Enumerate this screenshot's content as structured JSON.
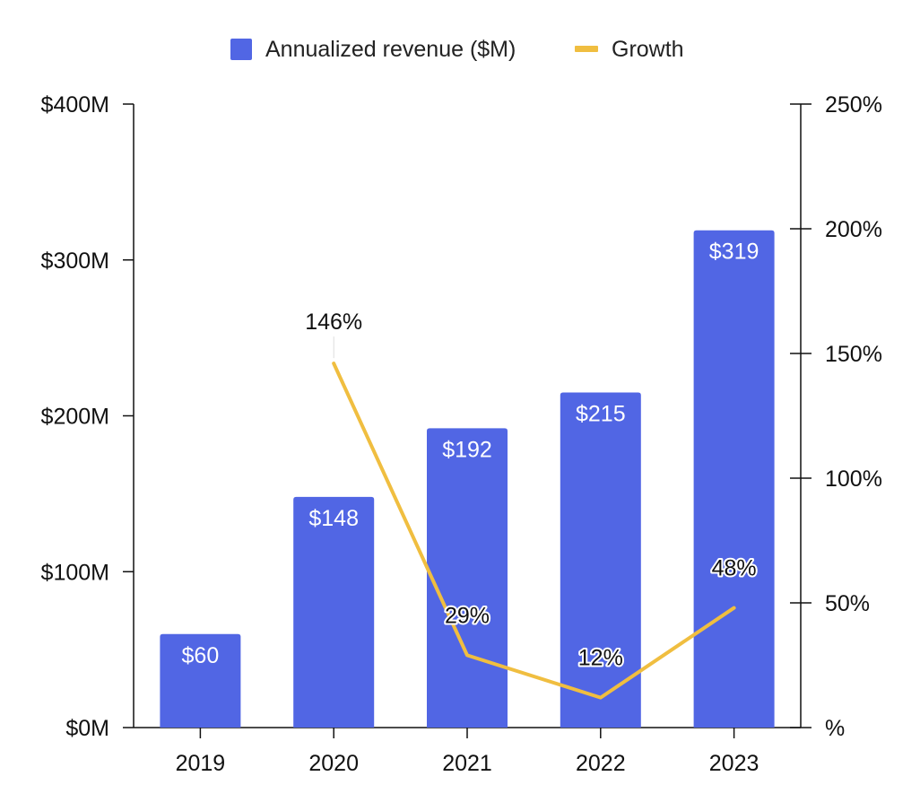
{
  "chart_data": {
    "type": "bar",
    "title": "",
    "xlabel": "",
    "ylabel": "",
    "categories": [
      "2019",
      "2020",
      "2021",
      "2022",
      "2023"
    ],
    "series": [
      {
        "name": "Annualized revenue ($M)",
        "kind": "bar",
        "axis": "left",
        "values": [
          60,
          148,
          192,
          215,
          319
        ],
        "labels": [
          "$60",
          "$148",
          "$192",
          "$215",
          "$319"
        ],
        "color": "#5166E4"
      },
      {
        "name": "Growth",
        "kind": "line",
        "axis": "right",
        "values": [
          null,
          146,
          29,
          12,
          48
        ],
        "labels": [
          "",
          "146%",
          "29%",
          "12%",
          "48%"
        ],
        "color": "#F0BE40"
      }
    ],
    "left_axis": {
      "ylim": [
        0,
        400
      ],
      "ticks": [
        0,
        100,
        200,
        300,
        400
      ],
      "tick_labels": [
        "$0M",
        "$100M",
        "$200M",
        "$300M",
        "$400M"
      ]
    },
    "right_axis": {
      "ylim": [
        0,
        250
      ],
      "ticks": [
        0,
        50,
        100,
        150,
        200,
        250
      ],
      "tick_labels": [
        "%",
        "50%",
        "100%",
        "150%",
        "200%",
        "250%"
      ]
    },
    "grid": false,
    "legend_position": "top"
  }
}
